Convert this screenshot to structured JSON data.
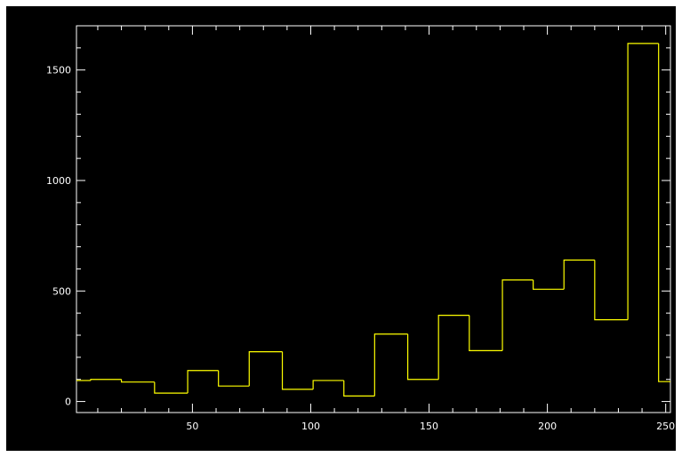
{
  "chart_data": {
    "type": "bar",
    "style": "step-histogram",
    "title": "",
    "xlabel": "",
    "ylabel": "",
    "xlim": [
      1,
      252
    ],
    "ylim": [
      -50,
      1700
    ],
    "xticks": [
      50,
      100,
      150,
      200,
      250
    ],
    "yticks": [
      0,
      500,
      1000,
      1500
    ],
    "grid": false,
    "legend": "none",
    "colors": {
      "background": "#000000",
      "axes": "#ffffff",
      "line": "#ffff00"
    },
    "bins": [
      {
        "x0": 1,
        "x1": 7,
        "y": 95
      },
      {
        "x0": 7,
        "x1": 20,
        "y": 100
      },
      {
        "x0": 20,
        "x1": 34,
        "y": 88
      },
      {
        "x0": 34,
        "x1": 48,
        "y": 38
      },
      {
        "x0": 48,
        "x1": 61,
        "y": 140
      },
      {
        "x0": 61,
        "x1": 74,
        "y": 70
      },
      {
        "x0": 74,
        "x1": 88,
        "y": 225
      },
      {
        "x0": 88,
        "x1": 101,
        "y": 55
      },
      {
        "x0": 101,
        "x1": 114,
        "y": 95
      },
      {
        "x0": 114,
        "x1": 127,
        "y": 25
      },
      {
        "x0": 127,
        "x1": 141,
        "y": 305
      },
      {
        "x0": 141,
        "x1": 154,
        "y": 100
      },
      {
        "x0": 154,
        "x1": 167,
        "y": 390
      },
      {
        "x0": 167,
        "x1": 181,
        "y": 230
      },
      {
        "x0": 181,
        "x1": 194,
        "y": 550
      },
      {
        "x0": 194,
        "x1": 207,
        "y": 508
      },
      {
        "x0": 207,
        "x1": 220,
        "y": 640
      },
      {
        "x0": 220,
        "x1": 234,
        "y": 370
      },
      {
        "x0": 234,
        "x1": 247,
        "y": 1620
      },
      {
        "x0": 247,
        "x1": 252,
        "y": 90
      }
    ]
  }
}
